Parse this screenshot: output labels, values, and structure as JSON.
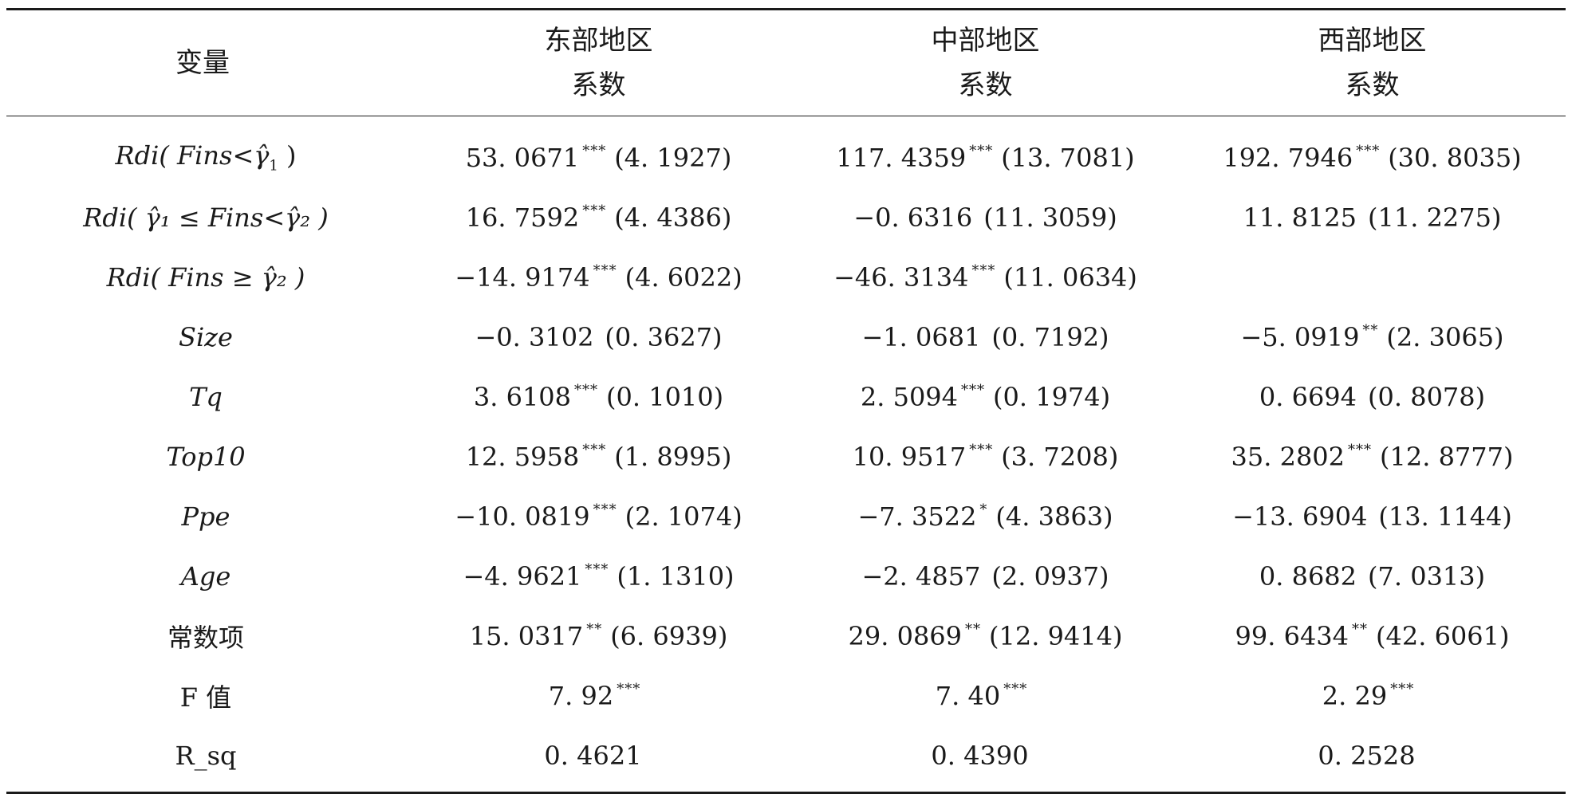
{
  "headers": {
    "variable": "变量",
    "east_region": "东部地区",
    "central_region": "中部地区",
    "west_region": "西部地区",
    "coef": "系数"
  },
  "rows": [
    {
      "var_main": "Rdi",
      "var_paren": "( Fins<γ̂",
      "var_sub": "1",
      "var_close": " )",
      "c1": "53. 0671",
      "c1_stars": "***",
      "c1_se": "(4. 1927)",
      "c2": "117. 4359",
      "c2_stars": "***",
      "c2_se": "(13. 7081)",
      "c3": "192. 7946",
      "c3_stars": "***",
      "c3_se": "(30. 8035)"
    },
    {
      "var_text": "Rdi( γ̂₁ ≤ Fins<γ̂₂ )",
      "c1": "16. 7592",
      "c1_stars": "***",
      "c1_se": "(4. 4386)",
      "c2": "−0. 6316",
      "c2_stars": "",
      "c2_se": "(11. 3059)",
      "c3": "11. 8125",
      "c3_stars": "",
      "c3_se": "(11. 2275)"
    },
    {
      "var_text": "Rdi( Fins ≥ γ̂₂ )",
      "c1": "−14. 9174",
      "c1_stars": "***",
      "c1_se": "(4. 6022)",
      "c2": "−46. 3134",
      "c2_stars": "***",
      "c2_se": "(11. 0634)",
      "c3": "",
      "c3_stars": "",
      "c3_se": ""
    },
    {
      "var_text": "Size",
      "c1": "−0. 3102",
      "c1_stars": "",
      "c1_se": "(0. 3627)",
      "c2": "−1. 0681",
      "c2_stars": "",
      "c2_se": "(0. 7192)",
      "c3": "−5. 0919",
      "c3_stars": "**",
      "c3_se": "(2. 3065)"
    },
    {
      "var_text": "Tq",
      "c1": "3. 6108",
      "c1_stars": "***",
      "c1_se": "(0. 1010)",
      "c2": "2. 5094",
      "c2_stars": "***",
      "c2_se": "(0. 1974)",
      "c3": "0. 6694",
      "c3_stars": "",
      "c3_se": "(0. 8078)"
    },
    {
      "var_text": "Top10",
      "c1": "12. 5958",
      "c1_stars": "***",
      "c1_se": "(1. 8995)",
      "c2": "10. 9517",
      "c2_stars": "***",
      "c2_se": "(3. 7208)",
      "c3": "35. 2802",
      "c3_stars": "***",
      "c3_se": "(12. 8777)"
    },
    {
      "var_text": "Ppe",
      "c1": "−10. 0819",
      "c1_stars": "***",
      "c1_se": "(2. 1074)",
      "c2": "−7. 3522",
      "c2_stars": "*",
      "c2_se": "(4. 3863)",
      "c3": "−13. 6904",
      "c3_stars": "",
      "c3_se": "(13. 1144)"
    },
    {
      "var_text": "Age",
      "c1": "−4. 9621",
      "c1_stars": "***",
      "c1_se": "(1. 1310)",
      "c2": "−2. 4857",
      "c2_stars": "",
      "c2_se": "(2. 0937)",
      "c3": "0. 8682",
      "c3_stars": "",
      "c3_se": "(7. 0313)"
    },
    {
      "var_text": "常数项",
      "c1": "15. 0317",
      "c1_stars": "**",
      "c1_se": "(6. 6939)",
      "c2": "29. 0869",
      "c2_stars": "**",
      "c2_se": "(12. 9414)",
      "c3": "99. 6434",
      "c3_stars": "**",
      "c3_se": "(42. 6061)"
    },
    {
      "var_text": "F 值",
      "c1": "7. 92",
      "c1_stars": "***",
      "c1_se": "",
      "c2": "7. 40",
      "c2_stars": "***",
      "c2_se": "",
      "c3": "2. 29",
      "c3_stars": "***",
      "c3_se": ""
    },
    {
      "var_text": "R_sq",
      "c1": "0. 4621",
      "c1_stars": "",
      "c1_se": "",
      "c2": "0. 4390",
      "c2_stars": "",
      "c2_se": "",
      "c3": "0. 2528",
      "c3_stars": "",
      "c3_se": ""
    }
  ]
}
